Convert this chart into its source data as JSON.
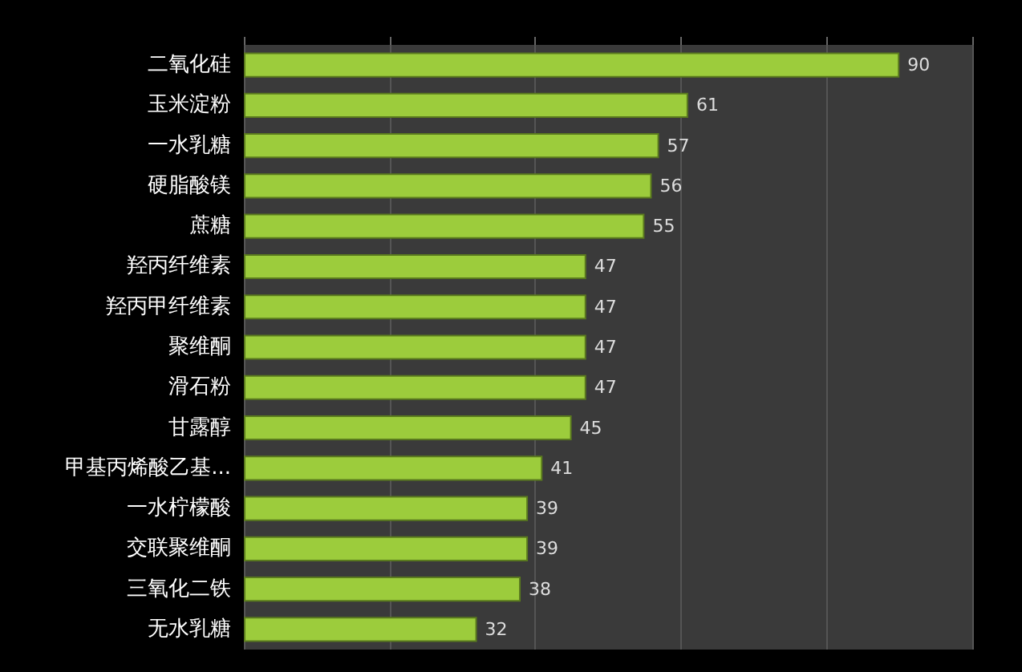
{
  "chart_data": {
    "type": "bar",
    "orientation": "horizontal",
    "categories": [
      "二氧化硅",
      "玉米淀粉",
      "一水乳糖",
      "硬脂酸镁",
      "蔗糖",
      "羟丙纤维素",
      "羟丙甲纤维素",
      "聚维酮",
      "滑石粉",
      "甘露醇",
      "甲基丙烯酸乙基...",
      "一水柠檬酸",
      "交联聚维酮",
      "三氧化二铁",
      "无水乳糖"
    ],
    "values": [
      90,
      61,
      57,
      56,
      55,
      47,
      47,
      47,
      47,
      45,
      41,
      39,
      39,
      38,
      32
    ],
    "color": "#9ccc3c",
    "xlim": [
      0,
      100
    ],
    "xticks": [
      {
        "value": 0,
        "label": null
      },
      {
        "value": 20,
        "label": null
      },
      {
        "value": 40,
        "label": null
      },
      {
        "value": 60,
        "label": null
      },
      {
        "value": 80,
        "label": null
      },
      {
        "value": 100,
        "label": null
      }
    ],
    "grid": "x",
    "data_labels": true
  }
}
